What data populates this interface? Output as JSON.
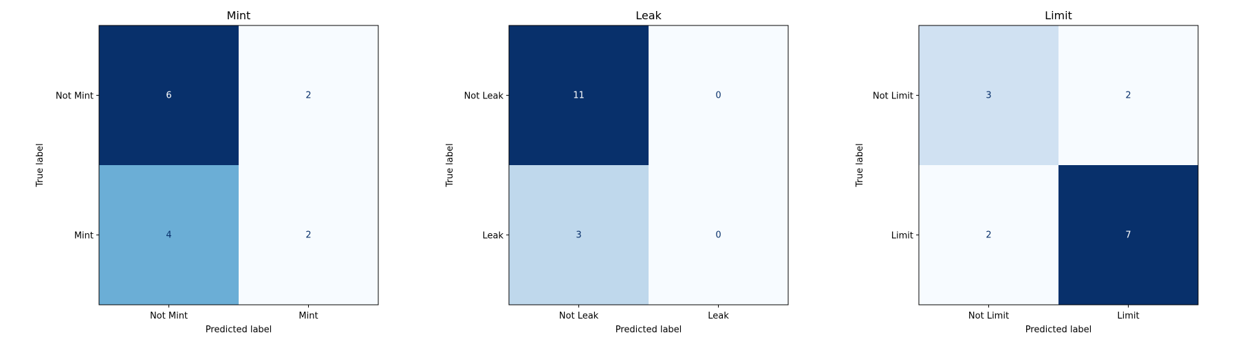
{
  "chart_data": [
    {
      "type": "heatmap",
      "title": "Mint",
      "xlabel": "Predicted label",
      "ylabel": "True label",
      "x_ticks": [
        "Not Mint",
        "Mint"
      ],
      "y_ticks": [
        "Not Mint",
        "Mint"
      ],
      "values": [
        [
          6,
          2
        ],
        [
          4,
          2
        ]
      ],
      "colormap": "Blues",
      "grid": false
    },
    {
      "type": "heatmap",
      "title": "Leak",
      "xlabel": "Predicted label",
      "ylabel": "True label",
      "x_ticks": [
        "Not Leak",
        "Leak"
      ],
      "y_ticks": [
        "Not Leak",
        "Leak"
      ],
      "values": [
        [
          11,
          0
        ],
        [
          3,
          0
        ]
      ],
      "colormap": "Blues",
      "grid": false
    },
    {
      "type": "heatmap",
      "title": "Limit",
      "xlabel": "Predicted label",
      "ylabel": "True label",
      "x_ticks": [
        "Not Limit",
        "Limit"
      ],
      "y_ticks": [
        "Not Limit",
        "Limit"
      ],
      "values": [
        [
          3,
          2
        ],
        [
          2,
          7
        ]
      ],
      "colormap": "Blues",
      "grid": false
    }
  ],
  "colors": {
    "cmap_low": "#f7fbff",
    "cmap_high": "#08306b",
    "text_on_dark": "#ffffff",
    "text_on_light": "#08306b",
    "axis": "#000000"
  }
}
